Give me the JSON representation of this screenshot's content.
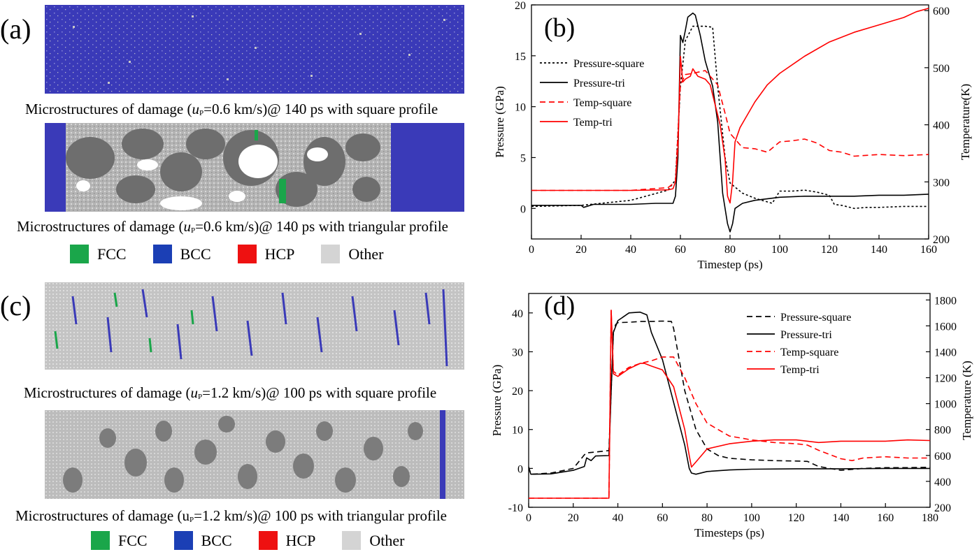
{
  "panels": {
    "a": {
      "label": "(a)",
      "caption_1": {
        "pre": "Microstructures of damage  (",
        "u": "u",
        "sub": "P",
        "post": "=0.6 km/s)@ 140 ps with square profile"
      },
      "caption_2": {
        "pre": "Microstructures of damage  (",
        "u": "u",
        "sub": "P",
        "post": "=0.6 km/s)@ 140 ps with triangular profile"
      },
      "legend": [
        {
          "label": "FCC",
          "color": "#1aa64a"
        },
        {
          "label": "BCC",
          "color": "#1b3fb5"
        },
        {
          "label": "HCP",
          "color": "#ee1111"
        },
        {
          "label": "Other",
          "color": "#d4d4d4"
        }
      ]
    },
    "c": {
      "label": "(c)",
      "caption_1": {
        "pre": "Microstructures of damage  (",
        "u": "u",
        "sub": "P",
        "post": "=1.2 km/s)@ 100 ps with square profile"
      },
      "caption_2": {
        "pre": "Microstructures of damage  (",
        "u": "u",
        "sub": "P",
        "post": "=1.2 km/s)@ 100 ps with triangular profile"
      },
      "legend": [
        {
          "label": "FCC",
          "color": "#1aa64a"
        },
        {
          "label": "BCC",
          "color": "#1b3fb5"
        },
        {
          "label": "HCP",
          "color": "#ee1111"
        },
        {
          "label": "Other",
          "color": "#d4d4d4"
        }
      ]
    }
  },
  "chart_data": [
    {
      "type": "line",
      "panel_label": "(b)",
      "xlabel": "Timestep (ps)",
      "ylabel": "Pressure (GPa)",
      "y2label": "Temperature(K)",
      "xlim": [
        0,
        160
      ],
      "ylim": [
        -3,
        20
      ],
      "y2lim": [
        200,
        610
      ],
      "xticks": [
        0,
        20,
        40,
        60,
        80,
        100,
        120,
        140,
        160
      ],
      "yticks": [
        0,
        5,
        10,
        15,
        20
      ],
      "y2ticks": [
        200,
        300,
        400,
        500,
        600
      ],
      "legend_position": "top-left",
      "series": [
        {
          "name": "Pressure-square",
          "axis": "left",
          "color": "#000000",
          "dash": "dotted",
          "x": [
            0,
            20,
            40,
            55,
            58,
            60,
            62,
            65,
            70,
            73,
            75,
            78,
            80,
            85,
            90,
            97,
            100,
            105,
            110,
            115,
            120,
            122,
            125,
            130,
            135,
            140,
            150,
            160
          ],
          "y": [
            0.2,
            0.3,
            0.8,
            1.8,
            2.8,
            12,
            16.5,
            17.9,
            17.9,
            17.8,
            12,
            5,
            2.5,
            1.5,
            1,
            0.5,
            1.7,
            1.7,
            1.8,
            1.6,
            1.3,
            0.4,
            0.3,
            0,
            0.1,
            0.1,
            0.2,
            0.2
          ]
        },
        {
          "name": "Pressure-tri",
          "axis": "left",
          "color": "#000000",
          "dash": "solid",
          "x": [
            0,
            20,
            21,
            25,
            40,
            50,
            55,
            57,
            58,
            59,
            60,
            61,
            62,
            63,
            65,
            66,
            68,
            70,
            73,
            75,
            77,
            79,
            80,
            81,
            82,
            85,
            90,
            100,
            110,
            120,
            130,
            140,
            150,
            160
          ],
          "y": [
            0.3,
            0.3,
            0.1,
            0.4,
            0.4,
            0.5,
            0.5,
            0.5,
            1.2,
            5,
            17,
            16.3,
            17.5,
            18.8,
            19.2,
            19,
            17,
            14.5,
            12,
            8.5,
            1.5,
            -1.5,
            -2.3,
            -1.5,
            0,
            0.5,
            0.8,
            1.1,
            1.2,
            1.2,
            1.2,
            1.3,
            1.3,
            1.4
          ]
        },
        {
          "name": "Temp-square",
          "axis": "right",
          "color": "#ff0000",
          "dash": "dashed",
          "x": [
            0,
            20,
            40,
            55,
            58,
            60,
            62,
            65,
            70,
            75,
            78,
            80,
            82,
            85,
            90,
            95,
            100,
            105,
            110,
            115,
            120,
            125,
            130,
            140,
            150,
            160
          ],
          "y": [
            285,
            285,
            285,
            290,
            300,
            470,
            488,
            490,
            495,
            470,
            420,
            385,
            375,
            360,
            358,
            352,
            370,
            372,
            375,
            368,
            355,
            352,
            345,
            348,
            346,
            348
          ]
        },
        {
          "name": "Temp-tri",
          "axis": "right",
          "color": "#ff0000",
          "dash": "solid",
          "x": [
            0,
            20,
            40,
            55,
            57,
            58,
            59,
            60,
            61,
            62,
            64,
            65,
            67,
            70,
            72,
            74,
            76,
            78,
            79,
            80,
            81,
            82,
            84,
            86,
            90,
            95,
            100,
            110,
            120,
            130,
            140,
            150,
            155,
            160
          ],
          "y": [
            285,
            285,
            285,
            286,
            288,
            300,
            360,
            520,
            475,
            480,
            485,
            498,
            485,
            480,
            470,
            435,
            400,
            340,
            275,
            263,
            300,
            370,
            395,
            410,
            440,
            470,
            490,
            520,
            545,
            562,
            575,
            588,
            598,
            604
          ]
        }
      ]
    },
    {
      "type": "line",
      "panel_label": "(d)",
      "xlabel": "Timesteps (ps)",
      "ylabel": "Pressure (GPa)",
      "y2label": "Temperature (K)",
      "xlim": [
        0,
        180
      ],
      "ylim": [
        -10,
        45
      ],
      "y2lim": [
        200,
        1850
      ],
      "xticks": [
        0,
        20,
        40,
        60,
        80,
        100,
        120,
        140,
        160,
        180
      ],
      "yticks": [
        -10,
        0,
        10,
        20,
        30,
        40
      ],
      "y2ticks": [
        200,
        400,
        600,
        800,
        1000,
        1200,
        1400,
        1600,
        1800
      ],
      "legend_position": "top-right",
      "series": [
        {
          "name": "Pressure-square",
          "axis": "left",
          "color": "#000000",
          "dash": "dashed",
          "x": [
            0,
            1,
            10,
            20,
            25,
            26,
            30,
            36,
            37,
            38,
            39,
            40,
            45,
            50,
            55,
            60,
            64,
            65,
            70,
            75,
            80,
            85,
            90,
            100,
            110,
            120,
            125,
            130,
            140,
            150,
            160,
            170,
            180
          ],
          "y": [
            0.4,
            -1.5,
            -1.2,
            0,
            3.5,
            4,
            4.2,
            4.6,
            20,
            35,
            37,
            37.5,
            37.6,
            37.8,
            37.8,
            37.9,
            37.8,
            36,
            20,
            10,
            5,
            3.3,
            2.6,
            2.2,
            2,
            1.9,
            1.8,
            0.5,
            -0.5,
            0,
            0.2,
            0.2,
            0.3
          ]
        },
        {
          "name": "Pressure-tri",
          "axis": "left",
          "color": "#000000",
          "dash": "solid",
          "x": [
            0,
            1,
            10,
            20,
            25,
            26,
            28,
            30,
            36,
            37,
            38,
            40,
            45,
            50,
            53,
            55,
            60,
            65,
            70,
            72,
            73,
            75,
            80,
            90,
            100,
            120,
            140,
            160,
            180
          ],
          "y": [
            0,
            -1.5,
            -1.4,
            -0.5,
            0.5,
            2.7,
            2,
            3.2,
            3.3,
            20,
            35,
            38,
            40,
            40.2,
            39.5,
            35,
            28,
            17,
            6,
            0,
            -1.2,
            -1.5,
            -0.8,
            -0.4,
            -0.2,
            -0.1,
            -0.1,
            0,
            0
          ]
        },
        {
          "name": "Temp-square",
          "axis": "right",
          "color": "#ff0000",
          "dash": "dashed",
          "x": [
            0,
            20,
            36,
            37,
            38,
            40,
            45,
            50,
            55,
            60,
            65,
            70,
            75,
            80,
            90,
            100,
            110,
            120,
            125,
            130,
            140,
            145,
            150,
            160,
            170,
            180
          ],
          "y": [
            270,
            270,
            270,
            1720,
            1250,
            1220,
            1280,
            1310,
            1330,
            1360,
            1360,
            1200,
            1000,
            850,
            750,
            720,
            700,
            690,
            680,
            640,
            575,
            560,
            580,
            590,
            580,
            580
          ]
        },
        {
          "name": "Temp-tri",
          "axis": "right",
          "color": "#ff0000",
          "dash": "solid",
          "x": [
            0,
            20,
            36,
            37,
            38,
            40,
            45,
            50,
            52,
            55,
            60,
            65,
            70,
            72,
            73,
            75,
            80,
            90,
            100,
            110,
            120,
            130,
            140,
            150,
            160,
            170,
            180
          ],
          "y": [
            270,
            270,
            270,
            1720,
            1230,
            1210,
            1270,
            1310,
            1310,
            1290,
            1260,
            1130,
            800,
            600,
            510,
            550,
            650,
            690,
            710,
            720,
            720,
            700,
            710,
            710,
            710,
            720,
            715
          ]
        }
      ]
    }
  ]
}
